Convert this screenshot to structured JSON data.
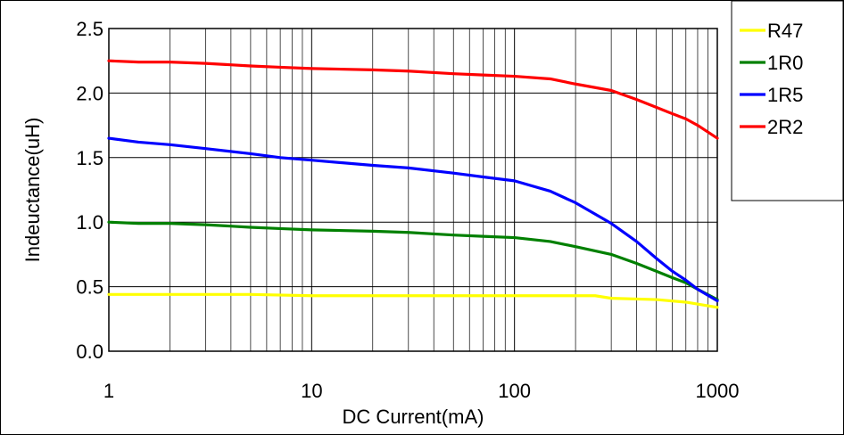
{
  "chart_data": {
    "type": "line",
    "xlabel": "DC Current(mA)",
    "ylabel": "Indeuctance(uH)",
    "x_scale": "log",
    "xlim": [
      1,
      1000
    ],
    "ylim": [
      0,
      2.5
    ],
    "x_ticks": [
      1,
      10,
      100,
      1000
    ],
    "x_tick_labels": [
      "1",
      "10",
      "100",
      "1000"
    ],
    "y_ticks": [
      0,
      0.5,
      1.0,
      1.5,
      2.0,
      2.5
    ],
    "y_tick_labels": [
      "0.0",
      "0.5",
      "1.0",
      "1.5",
      "2.0",
      "2.5"
    ],
    "grid": true,
    "legend_position": "top-right outside",
    "series": [
      {
        "name": "R47",
        "color": "#ffff00",
        "points": [
          [
            1,
            0.44
          ],
          [
            2,
            0.44
          ],
          [
            5,
            0.44
          ],
          [
            10,
            0.43
          ],
          [
            20,
            0.43
          ],
          [
            50,
            0.43
          ],
          [
            100,
            0.43
          ],
          [
            200,
            0.43
          ],
          [
            250,
            0.43
          ],
          [
            300,
            0.41
          ],
          [
            500,
            0.4
          ],
          [
            700,
            0.38
          ],
          [
            1000,
            0.34
          ]
        ]
      },
      {
        "name": "1R0",
        "color": "#008000",
        "points": [
          [
            1,
            1.0
          ],
          [
            1.4,
            0.99
          ],
          [
            2,
            0.99
          ],
          [
            3,
            0.98
          ],
          [
            5,
            0.96
          ],
          [
            7,
            0.95
          ],
          [
            10,
            0.94
          ],
          [
            20,
            0.93
          ],
          [
            30,
            0.92
          ],
          [
            50,
            0.9
          ],
          [
            70,
            0.89
          ],
          [
            100,
            0.88
          ],
          [
            150,
            0.85
          ],
          [
            200,
            0.81
          ],
          [
            300,
            0.75
          ],
          [
            400,
            0.68
          ],
          [
            500,
            0.62
          ],
          [
            600,
            0.57
          ],
          [
            700,
            0.53
          ],
          [
            800,
            0.48
          ],
          [
            1000,
            0.4
          ]
        ]
      },
      {
        "name": "1R5",
        "color": "#0000ff",
        "points": [
          [
            1,
            1.65
          ],
          [
            1.4,
            1.62
          ],
          [
            2,
            1.6
          ],
          [
            3,
            1.57
          ],
          [
            5,
            1.53
          ],
          [
            7,
            1.5
          ],
          [
            10,
            1.48
          ],
          [
            20,
            1.44
          ],
          [
            30,
            1.42
          ],
          [
            50,
            1.38
          ],
          [
            70,
            1.35
          ],
          [
            100,
            1.32
          ],
          [
            150,
            1.24
          ],
          [
            200,
            1.15
          ],
          [
            300,
            0.99
          ],
          [
            400,
            0.85
          ],
          [
            500,
            0.72
          ],
          [
            600,
            0.62
          ],
          [
            700,
            0.55
          ],
          [
            800,
            0.48
          ],
          [
            1000,
            0.39
          ]
        ]
      },
      {
        "name": "2R2",
        "color": "#ff0000",
        "points": [
          [
            1,
            2.25
          ],
          [
            1.4,
            2.24
          ],
          [
            2,
            2.24
          ],
          [
            3,
            2.23
          ],
          [
            5,
            2.21
          ],
          [
            7,
            2.2
          ],
          [
            10,
            2.19
          ],
          [
            20,
            2.18
          ],
          [
            30,
            2.17
          ],
          [
            50,
            2.15
          ],
          [
            70,
            2.14
          ],
          [
            100,
            2.13
          ],
          [
            150,
            2.11
          ],
          [
            200,
            2.07
          ],
          [
            300,
            2.02
          ],
          [
            400,
            1.95
          ],
          [
            500,
            1.89
          ],
          [
            600,
            1.84
          ],
          [
            700,
            1.8
          ],
          [
            800,
            1.75
          ],
          [
            1000,
            1.65
          ]
        ]
      }
    ]
  }
}
